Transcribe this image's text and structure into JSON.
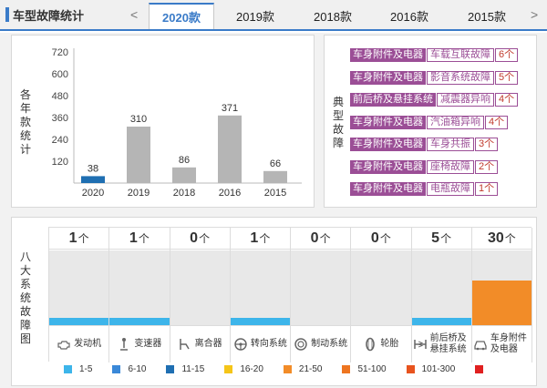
{
  "header": {
    "title": "车型故障统计",
    "prev_arrow": "<",
    "next_arrow": ">",
    "tabs": [
      {
        "label": "2020款",
        "active": true
      },
      {
        "label": "2019款",
        "active": false
      },
      {
        "label": "2018款",
        "active": false
      },
      {
        "label": "2016款",
        "active": false
      },
      {
        "label": "2015款",
        "active": false
      }
    ]
  },
  "year_chart": {
    "side_label": "各年款统计",
    "chart_data": {
      "type": "bar",
      "categories": [
        "2020",
        "2019",
        "2018",
        "2016",
        "2015"
      ],
      "values": [
        38,
        310,
        86,
        371,
        66
      ],
      "ylim": [
        0,
        720
      ],
      "yticks": [
        "120",
        "240",
        "360",
        "480",
        "600",
        "720"
      ],
      "highlight_color": "#1f6fb2",
      "bar_color": "#b5b5b5",
      "grid": false
    }
  },
  "typical_faults": {
    "side_label": "典型故障",
    "items": [
      {
        "category": "车身附件及电器",
        "name": "车载互联故障",
        "count": "6个"
      },
      {
        "category": "车身附件及电器",
        "name": "影音系统故障",
        "count": "5个"
      },
      {
        "category": "前后桥及悬挂系统",
        "name": "减震器异响",
        "count": "4个"
      },
      {
        "category": "车身附件及电器",
        "name": "汽油箱异响",
        "count": "4个"
      },
      {
        "category": "车身附件及电器",
        "name": "车身共振",
        "count": "3个"
      },
      {
        "category": "车身附件及电器",
        "name": "座椅故障",
        "count": "2个"
      },
      {
        "category": "车身附件及电器",
        "name": "电瓶故障",
        "count": "1个"
      }
    ],
    "tag_color": "#9b4e96"
  },
  "systems": {
    "side_label": "八大系统故障图",
    "unit": "个",
    "items": [
      {
        "count": "1",
        "label": "发动机",
        "icon": "engine-icon",
        "level": 0.1,
        "color": "#3db5ea"
      },
      {
        "count": "1",
        "label": "变速器",
        "icon": "gearshift-icon",
        "level": 0.1,
        "color": "#3db5ea"
      },
      {
        "count": "0",
        "label": "离合器",
        "icon": "clutch-pedal-icon",
        "level": 0,
        "color": "#3db5ea"
      },
      {
        "count": "1",
        "label": "转向系统",
        "icon": "steering-wheel-icon",
        "level": 0.1,
        "color": "#3db5ea"
      },
      {
        "count": "0",
        "label": "制动系统",
        "icon": "brake-disc-icon",
        "level": 0,
        "color": "#3db5ea"
      },
      {
        "count": "0",
        "label": "轮胎",
        "icon": "tire-icon",
        "level": 0,
        "color": "#3db5ea"
      },
      {
        "count": "5",
        "label": "前后桥及悬挂系统",
        "icon": "suspension-icon",
        "level": 0.1,
        "color": "#3db5ea"
      },
      {
        "count": "30",
        "label": "车身附件及电器",
        "icon": "car-body-icon",
        "level": 0.6,
        "color": "#f28c28"
      }
    ]
  },
  "legend": [
    {
      "label": "1-5",
      "color": "#3db5ea"
    },
    {
      "label": "6-10",
      "color": "#3a88d8"
    },
    {
      "label": "11-15",
      "color": "#1f6fb2"
    },
    {
      "label": "16-20",
      "color": "#f5c518"
    },
    {
      "label": "21-50",
      "color": "#f28c28"
    },
    {
      "label": "51-100",
      "color": "#ee7520"
    },
    {
      "label": "101-300",
      "color": "#e8531e"
    },
    {
      "label": "",
      "color": "#e02020"
    }
  ]
}
